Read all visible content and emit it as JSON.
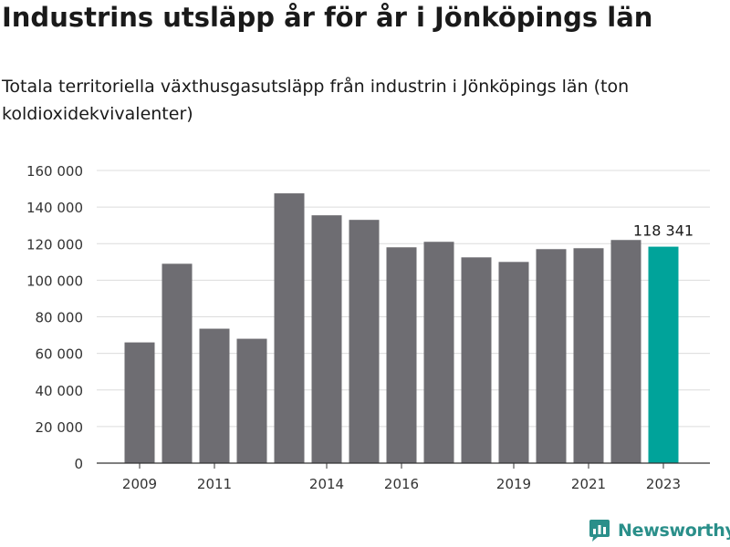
{
  "page": {
    "title": "Industrins utsläpp år för år i Jönköpings län",
    "subtitle": "Totala territoriella växthusgasutsläpp från industrin i Jönköpings län (ton koldioxidekvivalenter)",
    "brand": "Newsworthy"
  },
  "chart_data": {
    "type": "bar",
    "title": "Industrins utsläpp år för år i Jönköpings län",
    "subtitle": "Totala territoriella växthusgasutsläpp från industrin i Jönköpings län (ton koldioxidekvivalenter)",
    "xlabel": "",
    "ylabel": "",
    "categories": [
      "2009",
      "2010",
      "2011",
      "2012",
      "2013",
      "2014",
      "2015",
      "2016",
      "2017",
      "2018",
      "2019",
      "2020",
      "2021",
      "2022",
      "2023"
    ],
    "values": [
      66000,
      109000,
      73500,
      68000,
      147500,
      135500,
      133000,
      118000,
      121000,
      112500,
      110000,
      117000,
      117500,
      122000,
      118341
    ],
    "x_tick_labels": [
      "2009",
      "2011",
      "2014",
      "2016",
      "2019",
      "2021",
      "2023"
    ],
    "y_ticks": [
      0,
      20000,
      40000,
      60000,
      80000,
      100000,
      120000,
      140000,
      160000
    ],
    "y_tick_labels": [
      "0",
      "20 000",
      "40 000",
      "60 000",
      "80 000",
      "100 000",
      "120 000",
      "140 000",
      "160 000"
    ],
    "ylim": [
      0,
      160000
    ],
    "grid": true,
    "highlight": {
      "category": "2023",
      "label": "118 341"
    },
    "colors": {
      "bar": "#6e6d72",
      "highlight": "#00a39a",
      "grid": "#dcdcdc",
      "axis": "#333333",
      "tick_text": "#333333"
    }
  }
}
